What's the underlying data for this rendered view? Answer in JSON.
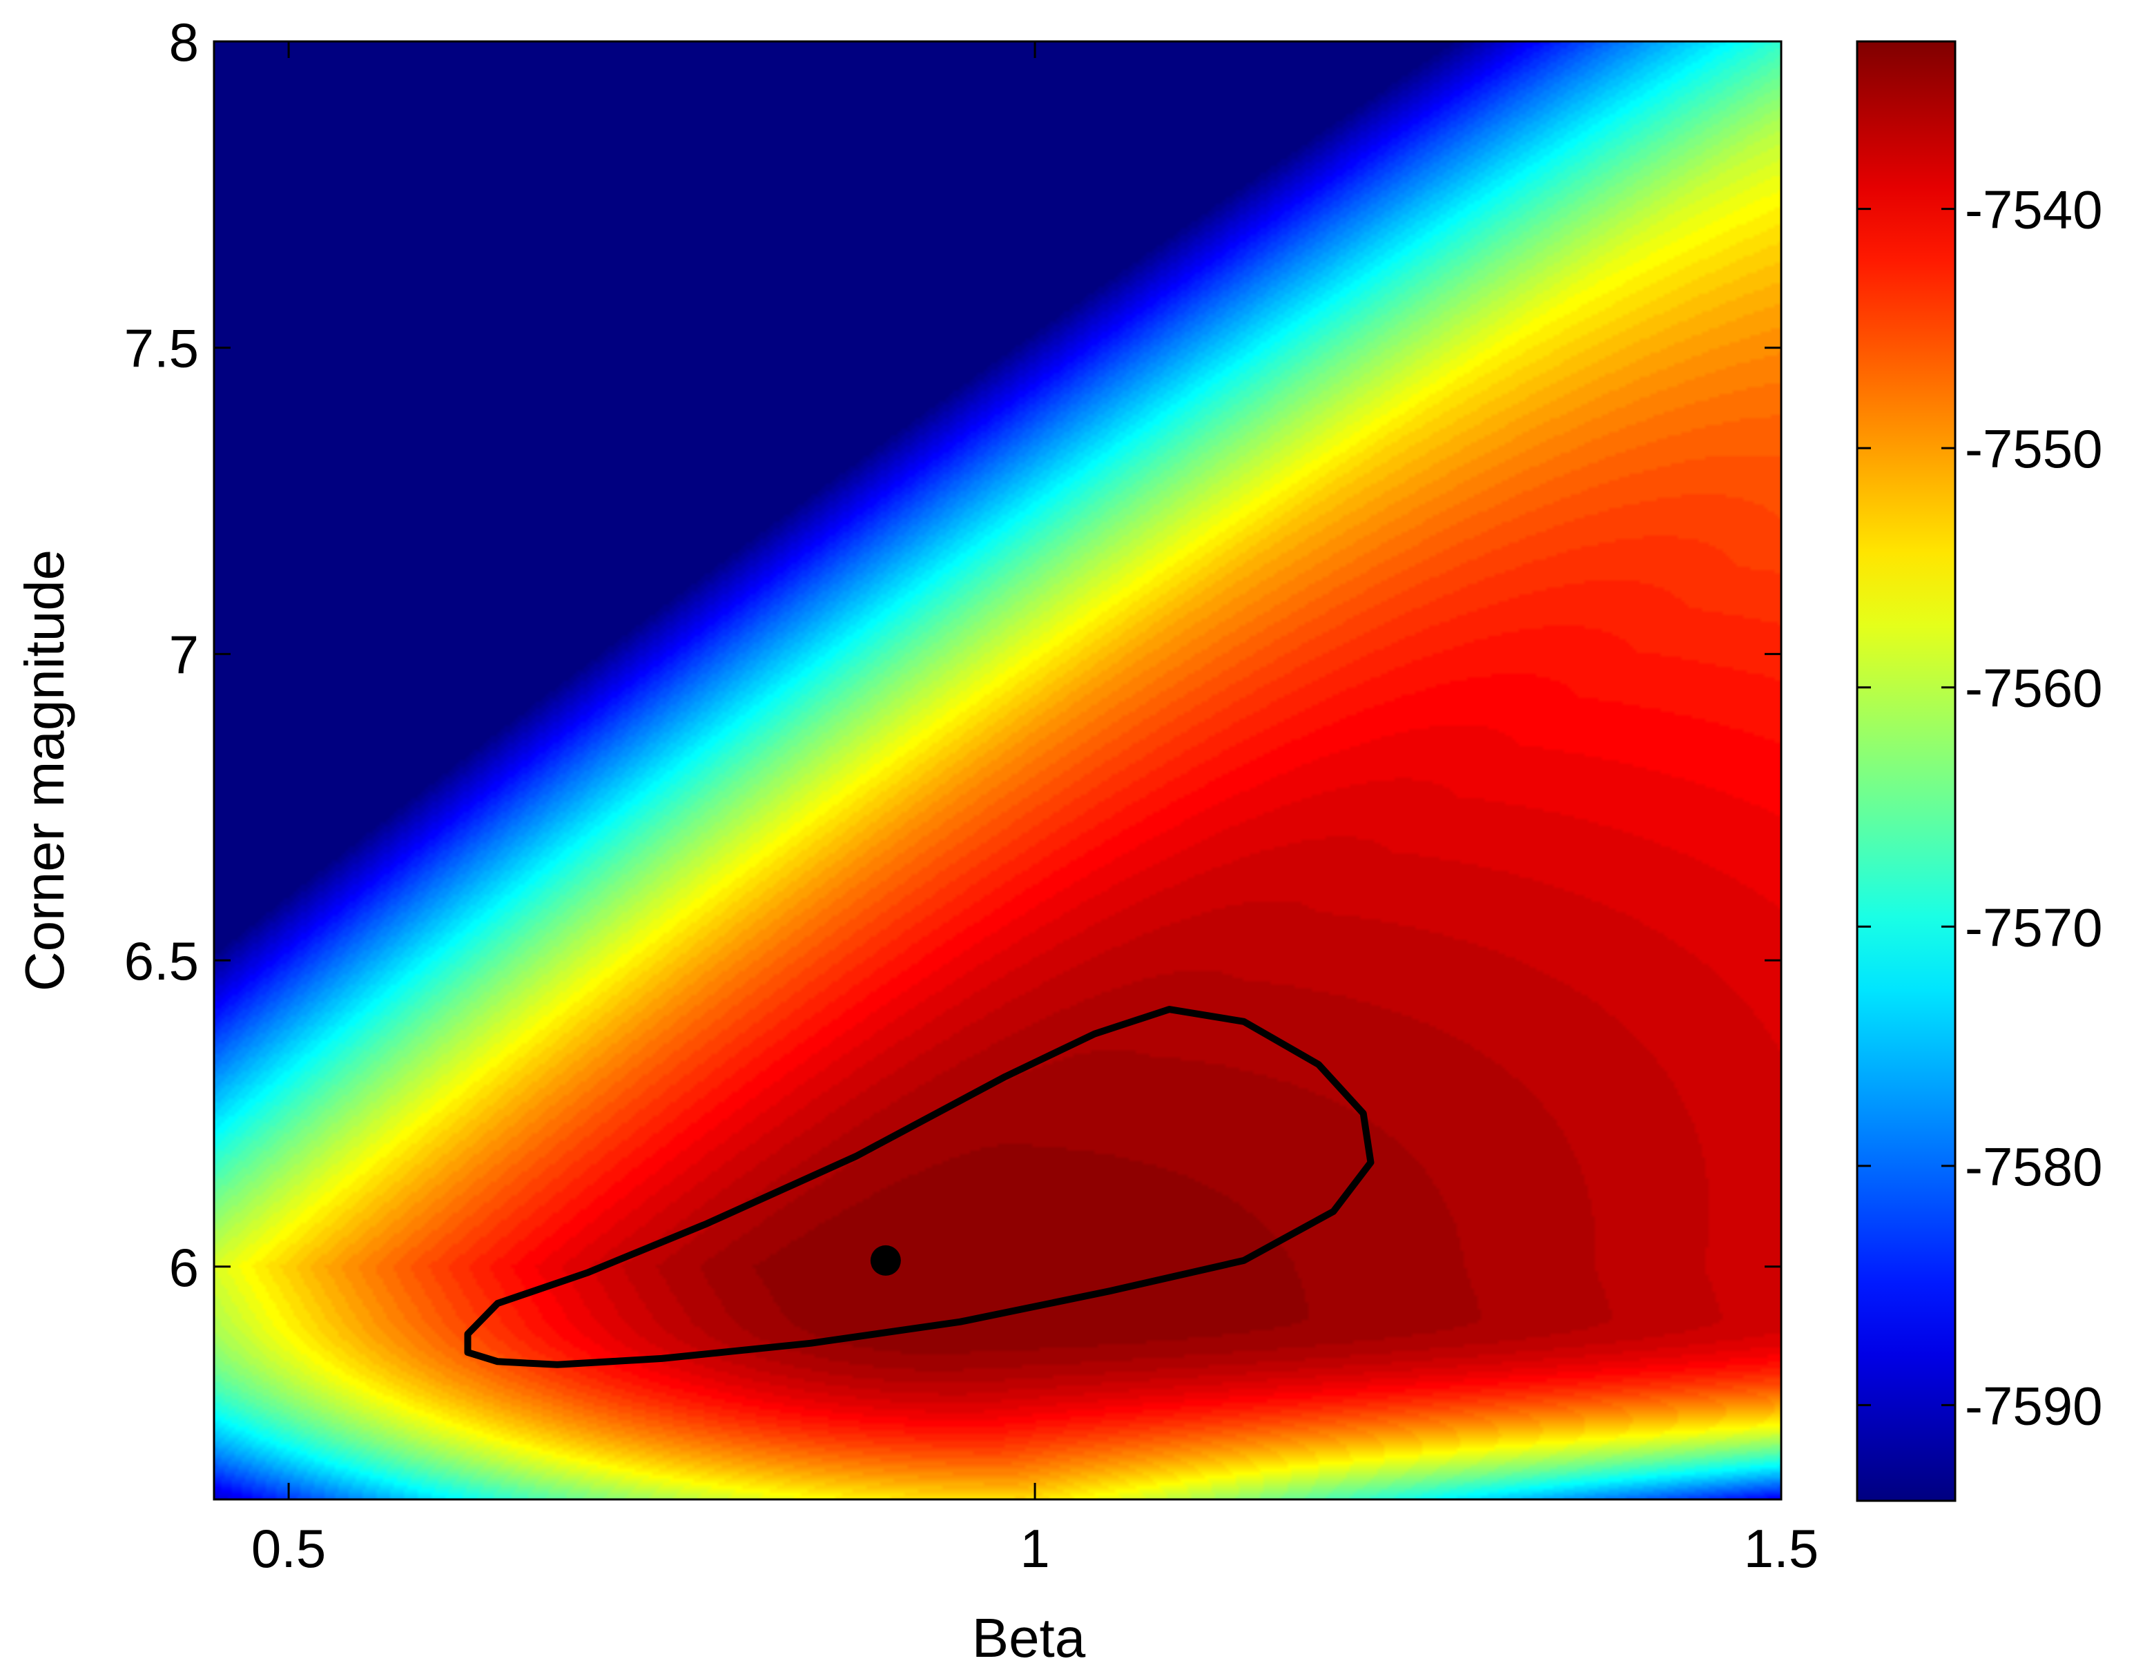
{
  "chart_data": {
    "type": "heatmap",
    "title": "",
    "xlabel": "Beta",
    "ylabel": "Corner magnitude",
    "xlim": [
      0.45,
      1.5
    ],
    "ylim": [
      5.62,
      8.0
    ],
    "x_ticks": [
      0.5,
      1,
      1.5
    ],
    "x_tick_labels": [
      "0.5",
      "1",
      "1.5"
    ],
    "y_ticks": [
      6,
      6.5,
      7,
      7.5,
      8
    ],
    "y_tick_labels": [
      "6",
      "6.5",
      "7",
      "7.5",
      "8"
    ],
    "colorbar": {
      "range": [
        -7594,
        -7533
      ],
      "ticks": [
        -7540,
        -7550,
        -7560,
        -7570,
        -7580,
        -7590
      ],
      "tick_labels": [
        "-7540",
        "-7550",
        "-7560",
        "-7570",
        "-7580",
        "-7590"
      ],
      "colormap": "jet",
      "position": "right"
    },
    "surface": {
      "maximum": {
        "x": 0.9,
        "y": 6.01,
        "value": -7533
      },
      "minimum_value": -7594
    },
    "confidence_contour": [
      [
        0.62,
        5.89
      ],
      [
        0.64,
        5.94
      ],
      [
        0.7,
        5.99
      ],
      [
        0.78,
        6.07
      ],
      [
        0.88,
        6.18
      ],
      [
        0.98,
        6.31
      ],
      [
        1.04,
        6.38
      ],
      [
        1.09,
        6.42
      ],
      [
        1.14,
        6.4
      ],
      [
        1.19,
        6.33
      ],
      [
        1.22,
        6.25
      ],
      [
        1.225,
        6.17
      ],
      [
        1.2,
        6.09
      ],
      [
        1.14,
        6.01
      ],
      [
        1.05,
        5.96
      ],
      [
        0.95,
        5.91
      ],
      [
        0.85,
        5.875
      ],
      [
        0.75,
        5.85
      ],
      [
        0.68,
        5.84
      ],
      [
        0.64,
        5.845
      ],
      [
        0.62,
        5.86
      ],
      [
        0.62,
        5.89
      ]
    ],
    "best_fit_point": {
      "x": 0.9,
      "y": 6.01
    },
    "grid": false,
    "legend": "none"
  }
}
